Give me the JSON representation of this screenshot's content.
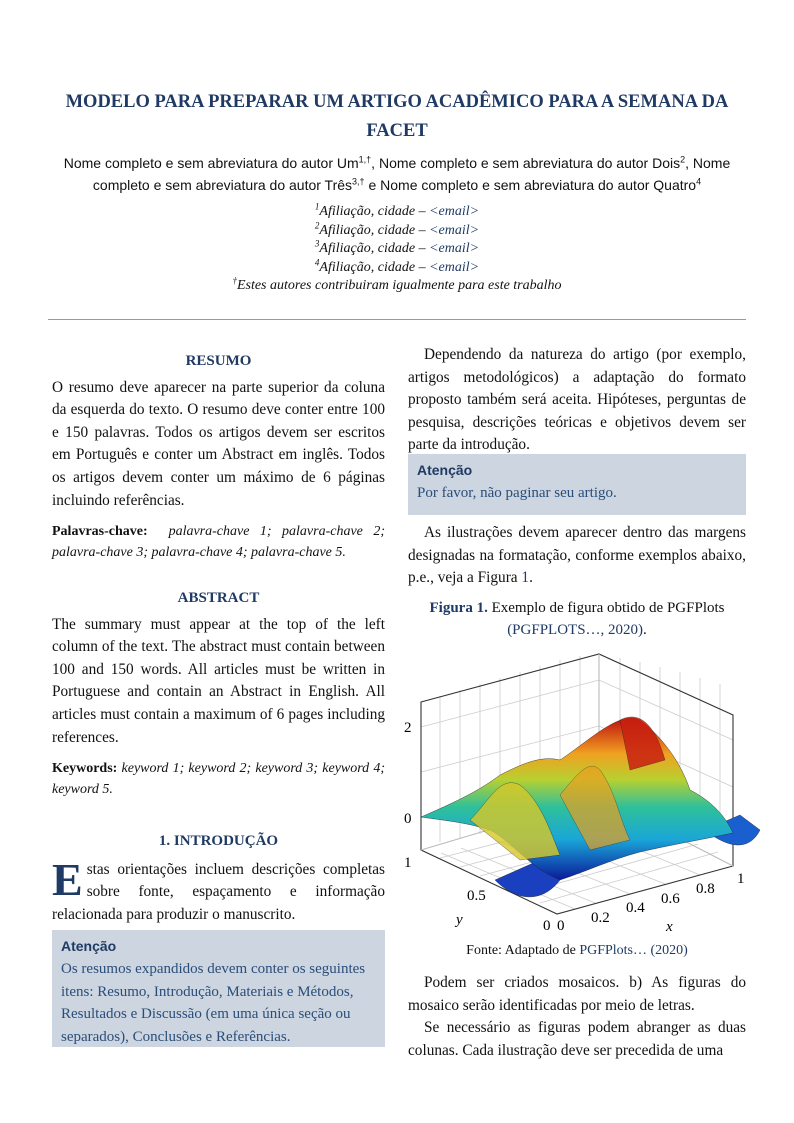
{
  "title": "MODELO PARA PREPARAR UM ARTIGO ACADÊMICO PARA A SEMANA DA FACET",
  "authors": [
    {
      "name": "Nome completo e sem abreviatura do autor Um",
      "sup": "1,†",
      "sep": ", "
    },
    {
      "name": "Nome completo e sem abreviatura do autor Dois",
      "sup": "2",
      "sep": ", "
    },
    {
      "name": "Nome completo e sem abreviatura do autor Três",
      "sup": "3,†",
      "sep": " e "
    },
    {
      "name": "Nome completo e sem abreviatura do autor Quatro",
      "sup": "4",
      "sep": ""
    }
  ],
  "affiliations": [
    {
      "sup": "1",
      "text": "Afiliação, cidade – ",
      "email": "<email>"
    },
    {
      "sup": "2",
      "text": "Afiliação, cidade – ",
      "email": "<email>"
    },
    {
      "sup": "3",
      "text": "Afiliação, cidade – ",
      "email": "<email>"
    },
    {
      "sup": "4",
      "text": "Afiliação, cidade – ",
      "email": "<email>"
    }
  ],
  "equal_note": {
    "sup": "†",
    "text": "Estes autores contribuiram igualmente para este trabalho"
  },
  "resumo": {
    "heading": "RESUMO",
    "text": "O resumo deve aparecer na parte superior da coluna da esquerda do texto. O resumo deve conter entre 100 e 150 palavras. Todos os artigos devem ser escritos em Português e conter um Abstract em inglês. Todos os artigos devem conter um máximo de 6 páginas incluindo referências.",
    "kw_label": "Palavras-chave:",
    "kw": "palavra-chave 1; palavra-chave 2; palavra-chave 3; palavra-chave 4; palavra-chave 5."
  },
  "abstract": {
    "heading": "ABSTRACT",
    "text": "The summary must appear at the top of the left column of the text. The abstract must contain between 100 and 150 words. All articles must be written in Portuguese and contain an Abstract in English. All articles must contain a maximum of 6 pages including references.",
    "kw_label": "Keywords:",
    "kw": "keyword 1; keyword 2; keyword 3; keyword 4; keyword 5."
  },
  "intro": {
    "heading": "1. INTRODUÇÃO",
    "dropcap": "E",
    "text": "stas orientações incluem descrições completas sobre fonte, espaçamento e informação relacionada para produzir o manuscrito."
  },
  "box1": {
    "title": "Atenção",
    "body": "Os resumos expandidos devem conter os seguintes itens: Resumo, Introdução, Materiais e Métodos, Resultados e Discussão (em uma única seção ou separados), Conclusões e Referências."
  },
  "right": {
    "p1": "Dependendo da natureza do artigo (por exemplo, artigos metodológicos) a adaptação do formato proposto também será aceita. Hipóteses, perguntas de pesquisa, descrições teóricas e objetivos devem ser parte da introdução.",
    "box2": {
      "title": "Atenção",
      "body": "Por favor, não paginar seu artigo."
    },
    "p2": "As ilustrações devem aparecer dentro das margens designadas na formatação, conforme exemplos abaixo, p.e., veja a Figura ",
    "p2_ref": "1",
    "fig_label": "Figura 1.",
    "fig_caption": " Exemplo de figura obtido de PGFPlots ",
    "fig_cite": "(PGFPLOTS…, 2020)",
    "fig_cite_end": ".",
    "source_prefix": "Fonte: Adaptado de ",
    "source_link": "PGFPlots…",
    "source_year": "(2020)",
    "p3": "Podem ser criados mosaicos. b) As figuras do mosaico serão identificadas por meio de letras.",
    "p4": "Se necessário as figuras podem abranger as duas colunas. Cada ilustração deve ser precedida de uma"
  },
  "figure": {
    "z_ticks": [
      "2",
      "0"
    ],
    "y_ticks": [
      "1",
      "0.5",
      "0"
    ],
    "x_ticks": [
      "0",
      "0.2",
      "0.4",
      "0.6",
      "0.8",
      "1"
    ],
    "xlabel": "x",
    "ylabel": "y",
    "colormap": "jet"
  },
  "colors": {
    "accent": "#1f3a64",
    "box": "#ccd5e0"
  }
}
